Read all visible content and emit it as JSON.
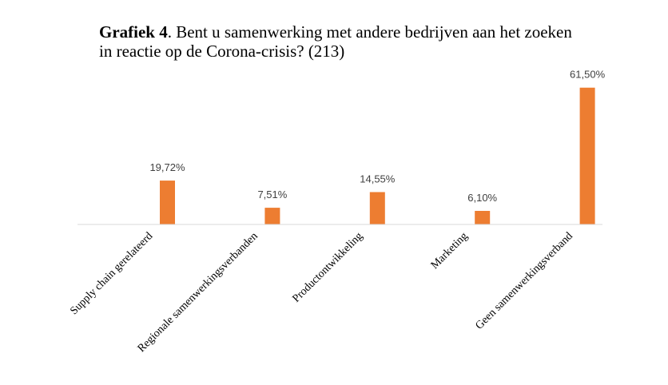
{
  "chart_data": {
    "type": "bar",
    "title_bold": "Grafiek 4",
    "title_rest": ". Bent u samenwerking met andere bedrijven aan het zoeken",
    "title_line2": "in reactie op de Corona-crisis? (213)",
    "categories": [
      "Supply chain gerelateerd",
      "Regionale samenwerkingsverbanden",
      "Productontwikkeling",
      "Marketing",
      "Geen samenwerkingsverband"
    ],
    "values": [
      19.72,
      7.51,
      14.55,
      6.1,
      61.5
    ],
    "data_labels": [
      "19,72%",
      "7,51%",
      "14,55%",
      "6,10%",
      "61,50%"
    ],
    "ylim": [
      0,
      65
    ],
    "grid": false,
    "legend": "none",
    "bar_color": "#ED7D31"
  }
}
